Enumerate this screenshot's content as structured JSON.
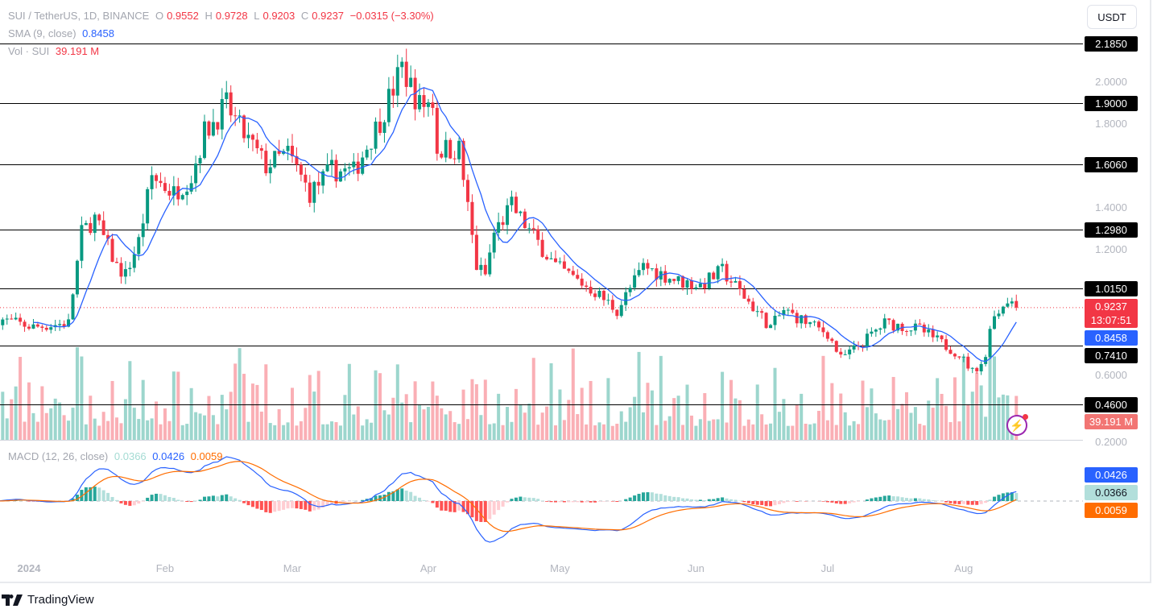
{
  "header": {
    "symbol": "SUI / TetherUS, 1D, BINANCE",
    "o_label": "O",
    "open": "0.9552",
    "h_label": "H",
    "high": "0.9728",
    "l_label": "L",
    "low": "0.9203",
    "c_label": "C",
    "close": "0.9237",
    "change": "−0.0315 (−3.30%)"
  },
  "sma": {
    "label": "SMA (9, close)",
    "value": "0.8458"
  },
  "vol": {
    "label": "Vol · SUI",
    "value": "39.191 M"
  },
  "macd": {
    "label": "MACD (12, 26, close)",
    "hist": "0.0366",
    "macd": "0.0426",
    "signal": "0.0059"
  },
  "currency_button": "USDT",
  "price_tag": {
    "price": "0.9237",
    "countdown": "13:07:51"
  },
  "sma_tag": "0.8458",
  "vol_tag": "39.191 M",
  "macd_tags": {
    "macd": "0.0426",
    "hist": "0.0366",
    "signal": "0.0059"
  },
  "brand": "TradingView",
  "colors": {
    "up": "#089981",
    "down": "#f23645",
    "sma": "#2962ff",
    "signal": "#ff6d00"
  },
  "chart_data": {
    "type": "candlestick",
    "title": "SUI / TetherUS, 1D, BINANCE",
    "ylim": [
      0.2,
      2.2
    ],
    "y_ticks": [
      "2.0000",
      "1.8000",
      "1.4000",
      "1.2000",
      "0.6000",
      "0.2000"
    ],
    "levels": [
      "2.1850",
      "1.9000",
      "1.6060",
      "1.2980",
      "1.0150",
      "0.7410",
      "0.4600"
    ],
    "x_labels": [
      {
        "label": "2024",
        "day": 0
      },
      {
        "label": "Feb",
        "day": 31
      },
      {
        "label": "Mar",
        "day": 60
      },
      {
        "label": "Apr",
        "day": 91
      },
      {
        "label": "May",
        "day": 121
      },
      {
        "label": "Jun",
        "day": 152
      },
      {
        "label": "Jul",
        "day": 182
      },
      {
        "label": "Aug",
        "day": 213
      }
    ],
    "x_range_days": [
      -7,
      225
    ],
    "close_keypoints": [
      [
        -7,
        0.87
      ],
      [
        1,
        0.83
      ],
      [
        9,
        0.85
      ],
      [
        12,
        1.28
      ],
      [
        15,
        1.35
      ],
      [
        20,
        1.12
      ],
      [
        22,
        1.08
      ],
      [
        25,
        1.24
      ],
      [
        28,
        1.55
      ],
      [
        33,
        1.47
      ],
      [
        37,
        1.55
      ],
      [
        40,
        1.76
      ],
      [
        45,
        1.89
      ],
      [
        48,
        1.78
      ],
      [
        54,
        1.6
      ],
      [
        59,
        1.66
      ],
      [
        64,
        1.47
      ],
      [
        69,
        1.58
      ],
      [
        74,
        1.57
      ],
      [
        80,
        1.82
      ],
      [
        85,
        2.07
      ],
      [
        89,
        1.89
      ],
      [
        92,
        1.91
      ],
      [
        93,
        1.68
      ],
      [
        98,
        1.68
      ],
      [
        102,
        1.12
      ],
      [
        104,
        1.08
      ],
      [
        106,
        1.28
      ],
      [
        110,
        1.41
      ],
      [
        113,
        1.32
      ],
      [
        120,
        1.12
      ],
      [
        129,
        1.0
      ],
      [
        134,
        0.91
      ],
      [
        140,
        1.12
      ],
      [
        148,
        1.05
      ],
      [
        153,
        1.03
      ],
      [
        158,
        1.1
      ],
      [
        162,
        1.0
      ],
      [
        169,
        0.83
      ],
      [
        172,
        0.91
      ],
      [
        182,
        0.8
      ],
      [
        185,
        0.68
      ],
      [
        189,
        0.74
      ],
      [
        195,
        0.85
      ],
      [
        203,
        0.82
      ],
      [
        212,
        0.7
      ],
      [
        215,
        0.62
      ],
      [
        218,
        0.68
      ],
      [
        219,
        0.85
      ],
      [
        223,
        0.97
      ],
      [
        225,
        0.9237
      ]
    ],
    "indicators": [
      "SMA 9",
      "Volume",
      "MACD 12 26 9"
    ]
  }
}
